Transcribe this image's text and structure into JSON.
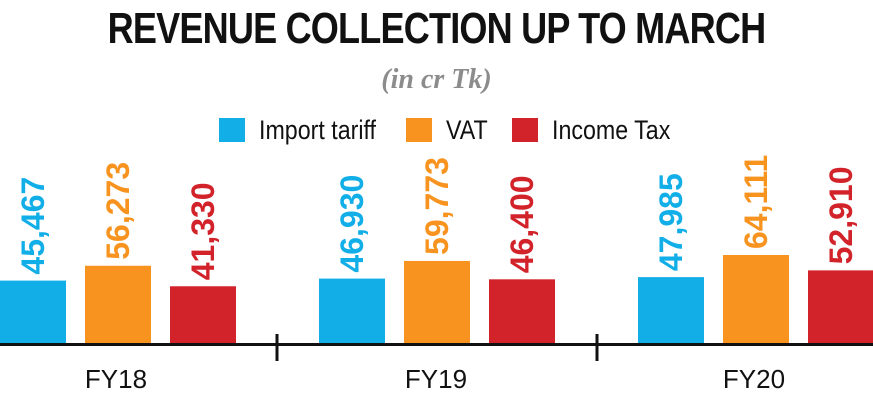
{
  "title": "REVENUE COLLECTION UP TO MARCH",
  "subtitle": "(in cr Tk)",
  "chart_data": {
    "type": "bar",
    "title": "REVENUE COLLECTION UP TO MARCH",
    "subtitle": "(in cr Tk)",
    "categories": [
      "FY18",
      "FY19",
      "FY20"
    ],
    "series": [
      {
        "name": "Import tariff",
        "color": "#11aee8",
        "values": [
          45467,
          46930,
          47985
        ],
        "labels": [
          "45,467",
          "46,930",
          "47,985"
        ]
      },
      {
        "name": "VAT",
        "color": "#f7931e",
        "values": [
          56273,
          59773,
          64111
        ],
        "labels": [
          "56,273",
          "59,773",
          "64,111"
        ]
      },
      {
        "name": "Income Tax",
        "color": "#d2232a",
        "values": [
          41330,
          46400,
          52910
        ],
        "labels": [
          "41,330",
          "46,400",
          "52,910"
        ]
      }
    ],
    "legend_position": "top-center",
    "grid": false,
    "xlabel": "",
    "ylabel": ""
  }
}
